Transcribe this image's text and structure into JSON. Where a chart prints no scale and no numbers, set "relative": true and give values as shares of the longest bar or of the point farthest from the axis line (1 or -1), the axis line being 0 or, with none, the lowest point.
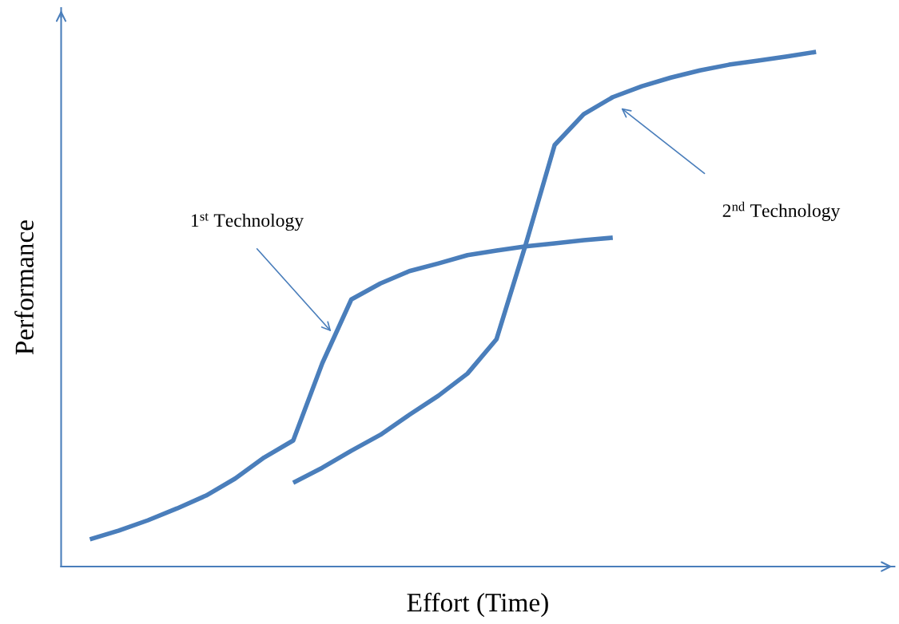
{
  "chart_data": {
    "type": "line",
    "relative": true,
    "xlabel": "Effort (Time)",
    "ylabel": "Performance",
    "legend": false,
    "marker": "none",
    "line_style": "solid",
    "categories": [
      null,
      null,
      null,
      null,
      null,
      null,
      null,
      null,
      null,
      null,
      null,
      null,
      null,
      null,
      null,
      null,
      null,
      null,
      null,
      null,
      null,
      null,
      null,
      null,
      null,
      null
    ],
    "series": [
      {
        "color": "#4a7ebb",
        "values": [
          0.053,
          0.07,
          0.09,
          0.113,
          0.138,
          0.171,
          0.212,
          0.245,
          0.395,
          0.519,
          0.55,
          0.574,
          0.589,
          0.605,
          0.614,
          0.622,
          0.628,
          0.634,
          0.639,
          null,
          null,
          null,
          null,
          null,
          null,
          null
        ]
      },
      {
        "color": "#4a7ebb",
        "values": [
          null,
          null,
          null,
          null,
          null,
          null,
          null,
          0.163,
          0.192,
          0.225,
          0.256,
          0.295,
          0.332,
          0.375,
          0.442,
          0.625,
          0.819,
          0.879,
          0.912,
          0.933,
          0.95,
          0.964,
          0.975,
          0.983,
          0.991,
          1.0
        ]
      }
    ],
    "annotations": [
      "1$^{st}$ Technology",
      "2$^{nd}$ Technology"
    ]
  }
}
